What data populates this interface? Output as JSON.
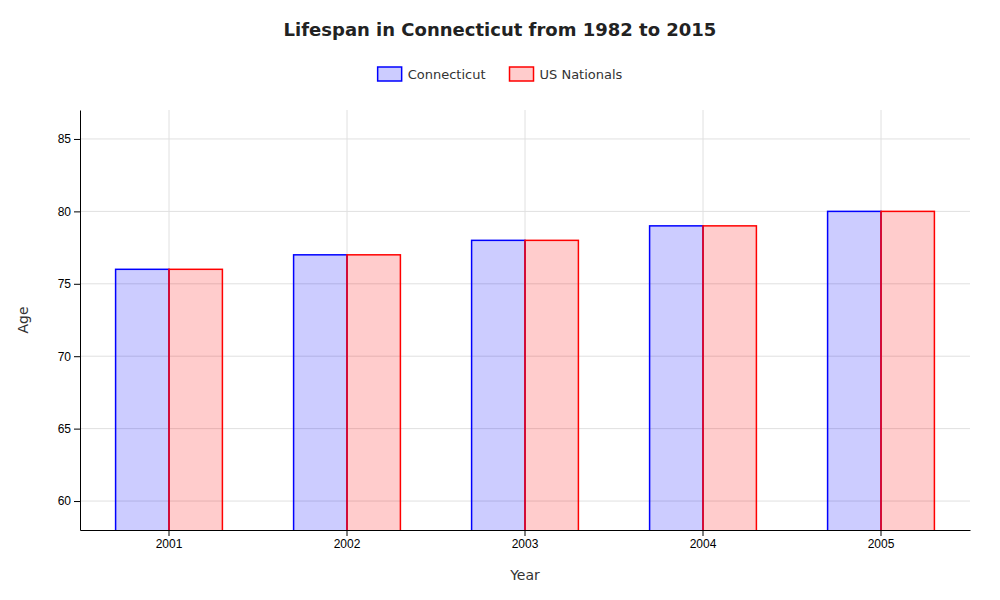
{
  "chart_data": {
    "type": "bar",
    "title": "Lifespan in Connecticut from 1982 to 2015",
    "x_label": "Year",
    "y_label": "Age",
    "categories": [
      "2001",
      "2002",
      "2003",
      "2004",
      "2005"
    ],
    "series": [
      {
        "name": "Connecticut",
        "color": "#0000ff",
        "values": [
          76,
          77,
          78,
          79,
          80
        ]
      },
      {
        "name": "US Nationals",
        "color": "#ff0000",
        "values": [
          76,
          77,
          78,
          79,
          80
        ]
      }
    ],
    "ylim": [
      58,
      87
    ],
    "yticks": [
      60,
      65,
      70,
      75,
      80,
      85
    ],
    "grid": true,
    "legend": "top"
  }
}
